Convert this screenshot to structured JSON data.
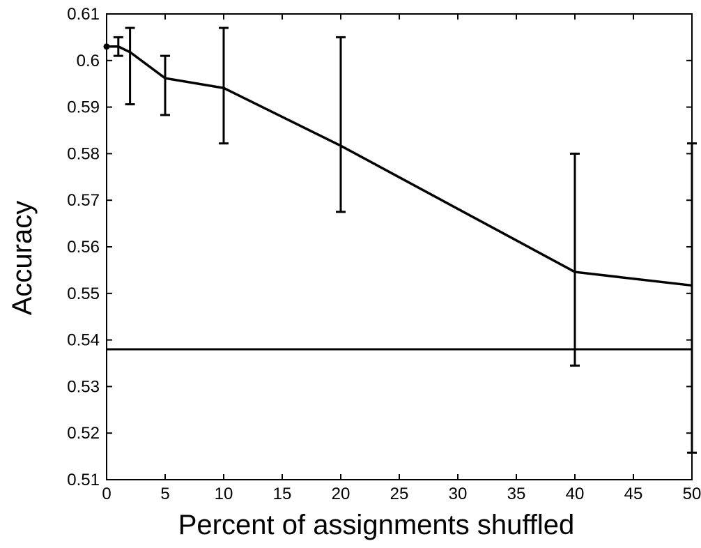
{
  "chart_data": {
    "type": "line",
    "title": "",
    "xlabel": "Percent of assignments shuffled",
    "ylabel": "Accuracy",
    "xlim": [
      0,
      50
    ],
    "ylim": [
      0.51,
      0.61
    ],
    "x_ticks": [
      0,
      5,
      10,
      15,
      20,
      25,
      30,
      35,
      40,
      45,
      50
    ],
    "x_tick_labels": [
      "0",
      "5",
      "10",
      "15",
      "20",
      "25",
      "30",
      "35",
      "40",
      "45",
      "50"
    ],
    "y_ticks": [
      0.51,
      0.52,
      0.53,
      0.54,
      0.55,
      0.56,
      0.57,
      0.58,
      0.59,
      0.6,
      0.61
    ],
    "y_tick_labels": [
      "0.51",
      "0.52",
      "0.53",
      "0.54",
      "0.55",
      "0.56",
      "0.57",
      "0.58",
      "0.59",
      "0.6",
      "0.61"
    ],
    "grid": false,
    "series": [
      {
        "x": [
          0,
          1,
          2,
          5,
          10,
          20,
          40,
          50
        ],
        "y": [
          0.603,
          0.603,
          0.6018,
          0.5962,
          0.5941,
          0.5817,
          0.5546,
          0.5517
        ],
        "y_err_low": [
          null,
          0.601,
          0.5906,
          0.5883,
          0.5822,
          0.5675,
          0.5345,
          0.5158
        ],
        "y_err_high": [
          null,
          0.605,
          0.607,
          0.601,
          0.607,
          0.605,
          0.58,
          0.5822
        ],
        "color": "#000000"
      }
    ],
    "reference_lines": [
      {
        "y": 0.538,
        "color": "#000000"
      }
    ]
  }
}
